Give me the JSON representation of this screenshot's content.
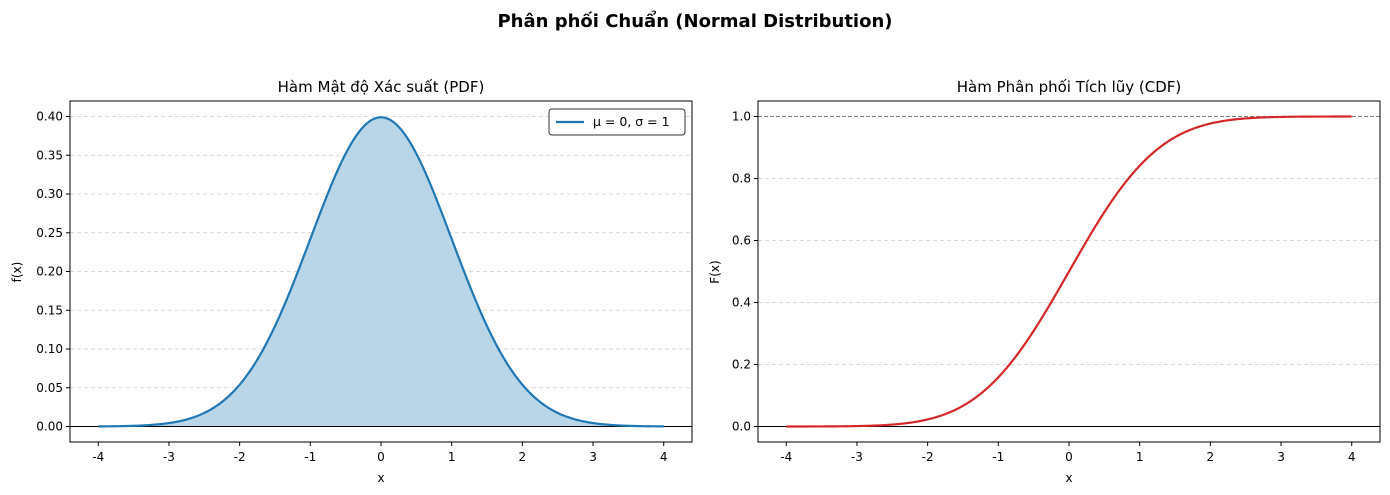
{
  "figure": {
    "suptitle": "Phân phối Chuẩn (Normal Distribution)"
  },
  "colors": {
    "pdf_line": "#1f77b4",
    "pdf_fill": "#b9d5e8",
    "cdf_line": "#d62728",
    "grid": "#cccccc",
    "axhline_zero": "#000000",
    "axhline_one": "#808080"
  },
  "chart_data": [
    {
      "type": "area",
      "title": "Hàm Mật độ Xác suất (PDF)",
      "xlabel": "x",
      "ylabel": "f(x)",
      "xlim": [
        -4.4,
        4.4
      ],
      "ylim": [
        -0.02,
        0.42
      ],
      "xticks": [
        -4,
        -3,
        -2,
        -1,
        0,
        1,
        2,
        3,
        4
      ],
      "xtick_labels": [
        "-4",
        "-3",
        "-2",
        "-1",
        "0",
        "1",
        "2",
        "3",
        "4"
      ],
      "yticks": [
        0,
        0.05,
        0.1,
        0.15,
        0.2,
        0.25,
        0.3,
        0.35,
        0.4
      ],
      "ytick_labels": [
        "0.00",
        "0.05",
        "0.10",
        "0.15",
        "0.20",
        "0.25",
        "0.30",
        "0.35",
        "0.40"
      ],
      "grid": "y-dashed",
      "legend": "upper-right",
      "series": [
        {
          "name": "μ = 0, σ = 1",
          "x": [
            -4,
            -3.5,
            -3,
            -2.5,
            -2,
            -1.75,
            -1.5,
            -1.25,
            -1,
            -0.75,
            -0.5,
            -0.25,
            0,
            0.25,
            0.5,
            0.75,
            1,
            1.25,
            1.5,
            1.75,
            2,
            2.5,
            3,
            3.5,
            4
          ],
          "y": [
            0.0001,
            0.0009,
            0.0044,
            0.0175,
            0.054,
            0.0863,
            0.1295,
            0.1826,
            0.242,
            0.3011,
            0.3521,
            0.3867,
            0.3989,
            0.3867,
            0.3521,
            0.3011,
            0.242,
            0.1826,
            0.1295,
            0.0863,
            0.054,
            0.0175,
            0.0044,
            0.0009,
            0.0001
          ]
        }
      ]
    },
    {
      "type": "line",
      "title": "Hàm Phân phối Tích lũy (CDF)",
      "xlabel": "x",
      "ylabel": "F(x)",
      "xlim": [
        -4.4,
        4.4
      ],
      "ylim": [
        -0.05,
        1.05
      ],
      "xticks": [
        -4,
        -3,
        -2,
        -1,
        0,
        1,
        2,
        3,
        4
      ],
      "xtick_labels": [
        "-4",
        "-3",
        "-2",
        "-1",
        "0",
        "1",
        "2",
        "3",
        "4"
      ],
      "yticks": [
        0,
        0.2,
        0.4,
        0.6,
        0.8,
        1.0
      ],
      "ytick_labels": [
        "0.0",
        "0.2",
        "0.4",
        "0.6",
        "0.8",
        "1.0"
      ],
      "grid": "y-dashed",
      "series": [
        {
          "x": [
            -4,
            -3.5,
            -3,
            -2.5,
            -2,
            -1.75,
            -1.5,
            -1.25,
            -1,
            -0.75,
            -0.5,
            -0.25,
            0,
            0.25,
            0.5,
            0.75,
            1,
            1.25,
            1.5,
            1.75,
            2,
            2.5,
            3,
            3.5,
            4
          ],
          "y": [
            0.0,
            0.0002,
            0.0013,
            0.0062,
            0.0228,
            0.0401,
            0.0668,
            0.1056,
            0.1587,
            0.2266,
            0.3085,
            0.4013,
            0.5,
            0.5987,
            0.6915,
            0.7734,
            0.8413,
            0.8944,
            0.9332,
            0.9599,
            0.9772,
            0.9938,
            0.9987,
            0.9998,
            1.0
          ]
        }
      ]
    }
  ]
}
